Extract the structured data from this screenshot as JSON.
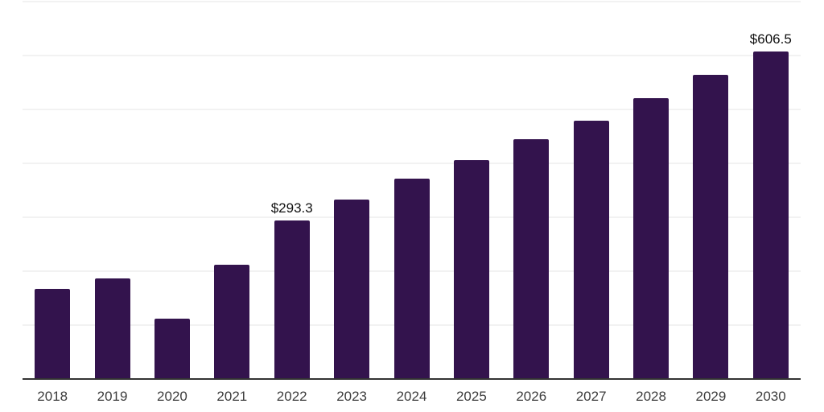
{
  "chart_data": {
    "type": "bar",
    "title": "",
    "xlabel": "",
    "ylabel": "",
    "categories": [
      "2018",
      "2019",
      "2020",
      "2021",
      "2022",
      "2023",
      "2024",
      "2025",
      "2026",
      "2027",
      "2028",
      "2029",
      "2030"
    ],
    "values": [
      165.7,
      185.1,
      110.5,
      210.5,
      293.3,
      331.4,
      370.2,
      404.5,
      443.3,
      477.6,
      519.4,
      562.7,
      606.5
    ],
    "data_labels": {
      "2022": "$293.3",
      "2030": "$606.5"
    },
    "ylim": [
      0,
      700
    ],
    "gridline_step": 100,
    "grid": "horizontal",
    "legend": "none",
    "bar_color": "#33134d",
    "gridline_color": "#f2f2f2",
    "axis_line_color": "#333333",
    "tick_label_color": "#3d3d3d",
    "value_label_color": "#111111"
  }
}
